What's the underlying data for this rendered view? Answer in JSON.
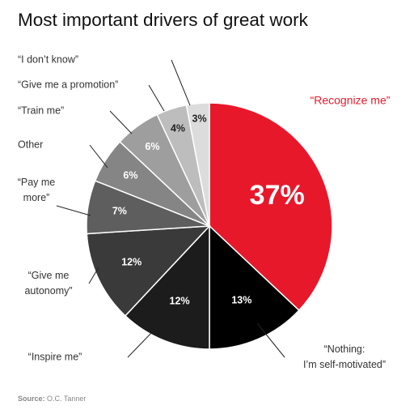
{
  "chart_data": {
    "type": "pie",
    "title": "Most important drivers of great work",
    "slices": [
      {
        "label": "“Recognize me”",
        "value": 37,
        "value_label": "37%",
        "color": "#e8182b"
      },
      {
        "label_lines": [
          "“Nothing:",
          "I’m self-motivated”"
        ],
        "value": 13,
        "value_label": "13%",
        "color": "#000000"
      },
      {
        "label": "“Inspire me”",
        "value": 12,
        "value_label": "12%",
        "color": "#1c1c1c"
      },
      {
        "label_lines": [
          "“Give me",
          "autonomy”"
        ],
        "value": 12,
        "value_label": "12%",
        "color": "#3a3a3a"
      },
      {
        "label_lines": [
          "“Pay me",
          "more”"
        ],
        "value": 7,
        "value_label": "7%",
        "color": "#5e5e5e"
      },
      {
        "label": "Other",
        "value": 6,
        "value_label": "6%",
        "color": "#858585"
      },
      {
        "label": "“Train me”",
        "value": 6,
        "value_label": "6%",
        "color": "#9e9e9e"
      },
      {
        "label": "“Give me a promotion”",
        "value": 4,
        "value_label": "4%",
        "color": "#bdbdbd"
      },
      {
        "label": "“I don’t know”",
        "value": 3,
        "value_label": "3%",
        "color": "#dcdcdc"
      }
    ]
  },
  "footer": {
    "source_label": "Source:",
    "source_text": "O.C. Tanner"
  }
}
